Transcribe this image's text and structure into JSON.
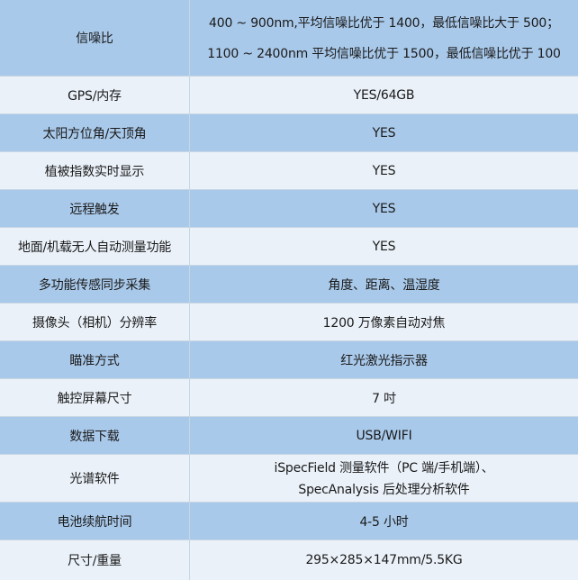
{
  "table": {
    "rows": [
      [
        [
          "信噪比"
        ],
        [
          "400 ~ 900nm,平均信噪比优于 1400，最低信噪比大于 500；",
          "1100 ~ 2400nm 平均信噪比优于 1500，最低信噪比优于 100"
        ]
      ],
      [
        [
          "GPS/内存"
        ],
        [
          "YES/64GB"
        ]
      ],
      [
        [
          "太阳方位角/天顶角"
        ],
        [
          "YES"
        ]
      ],
      [
        [
          "植被指数实时显示"
        ],
        [
          "YES"
        ]
      ],
      [
        [
          "远程触发"
        ],
        [
          "YES"
        ]
      ],
      [
        [
          "地面/机载无人自动测量功能"
        ],
        [
          "YES"
        ]
      ],
      [
        [
          "多功能传感同步采集"
        ],
        [
          "角度、距离、温湿度"
        ]
      ],
      [
        [
          "摄像头（相机）分辨率"
        ],
        [
          "1200 万像素自动对焦"
        ]
      ],
      [
        [
          "瞄准方式"
        ],
        [
          "红光激光指示器"
        ]
      ],
      [
        [
          "触控屏幕尺寸"
        ],
        [
          "7 吋"
        ]
      ],
      [
        [
          "数据下载"
        ],
        [
          "USB/WIFI"
        ]
      ],
      [
        [
          "光谱软件"
        ],
        [
          "iSpecField 测量软件（PC 端/手机端）、",
          "SpecAnalysis 后处理分析软件"
        ]
      ],
      [
        [
          "电池续航时间"
        ],
        [
          "4-5 小时"
        ]
      ],
      [
        [
          "尺寸/重量"
        ],
        [
          "295×285×147mm/5.5KG"
        ]
      ]
    ]
  }
}
